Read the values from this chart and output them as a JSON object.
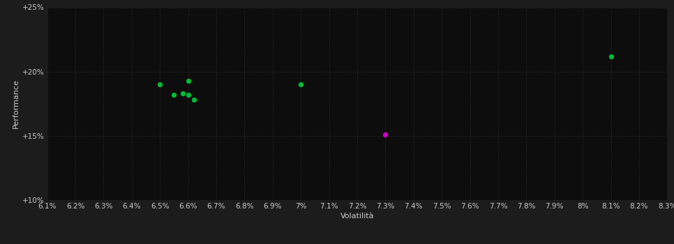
{
  "background_color": "#1c1c1c",
  "plot_bg_color": "#0d0d0d",
  "grid_color": "#2e2e2e",
  "text_color": "#cccccc",
  "xlabel": "Volatilità",
  "ylabel": "Performance",
  "xlim": [
    0.061,
    0.083
  ],
  "ylim": [
    0.1,
    0.25
  ],
  "xticks": [
    0.061,
    0.062,
    0.063,
    0.064,
    0.065,
    0.066,
    0.067,
    0.068,
    0.069,
    0.07,
    0.071,
    0.072,
    0.073,
    0.074,
    0.075,
    0.076,
    0.077,
    0.078,
    0.079,
    0.08,
    0.081,
    0.082,
    0.083
  ],
  "xtick_labels": [
    "6.1%",
    "6.2%",
    "6.3%",
    "6.4%",
    "6.5%",
    "6.6%",
    "6.7%",
    "6.8%",
    "6.9%",
    "7%",
    "7.1%",
    "7.2%",
    "7.3%",
    "7.4%",
    "7.5%",
    "7.6%",
    "7.7%",
    "7.8%",
    "7.9%",
    "8%",
    "8.1%",
    "8.2%",
    "8.3%"
  ],
  "yticks": [
    0.1,
    0.15,
    0.2,
    0.25
  ],
  "ytick_labels": [
    "+10%",
    "+15%",
    "+20%",
    "+25%"
  ],
  "green_dots": [
    [
      0.065,
      0.19
    ],
    [
      0.066,
      0.193
    ],
    [
      0.0655,
      0.182
    ],
    [
      0.0658,
      0.183
    ],
    [
      0.066,
      0.182
    ],
    [
      0.0662,
      0.178
    ],
    [
      0.07,
      0.19
    ],
    [
      0.081,
      0.212
    ]
  ],
  "magenta_dot": [
    0.073,
    0.151
  ],
  "green_color": "#00bb33",
  "magenta_color": "#cc00cc",
  "dot_size": 28,
  "fontsize_axis_label": 8,
  "fontsize_tick": 7.5
}
